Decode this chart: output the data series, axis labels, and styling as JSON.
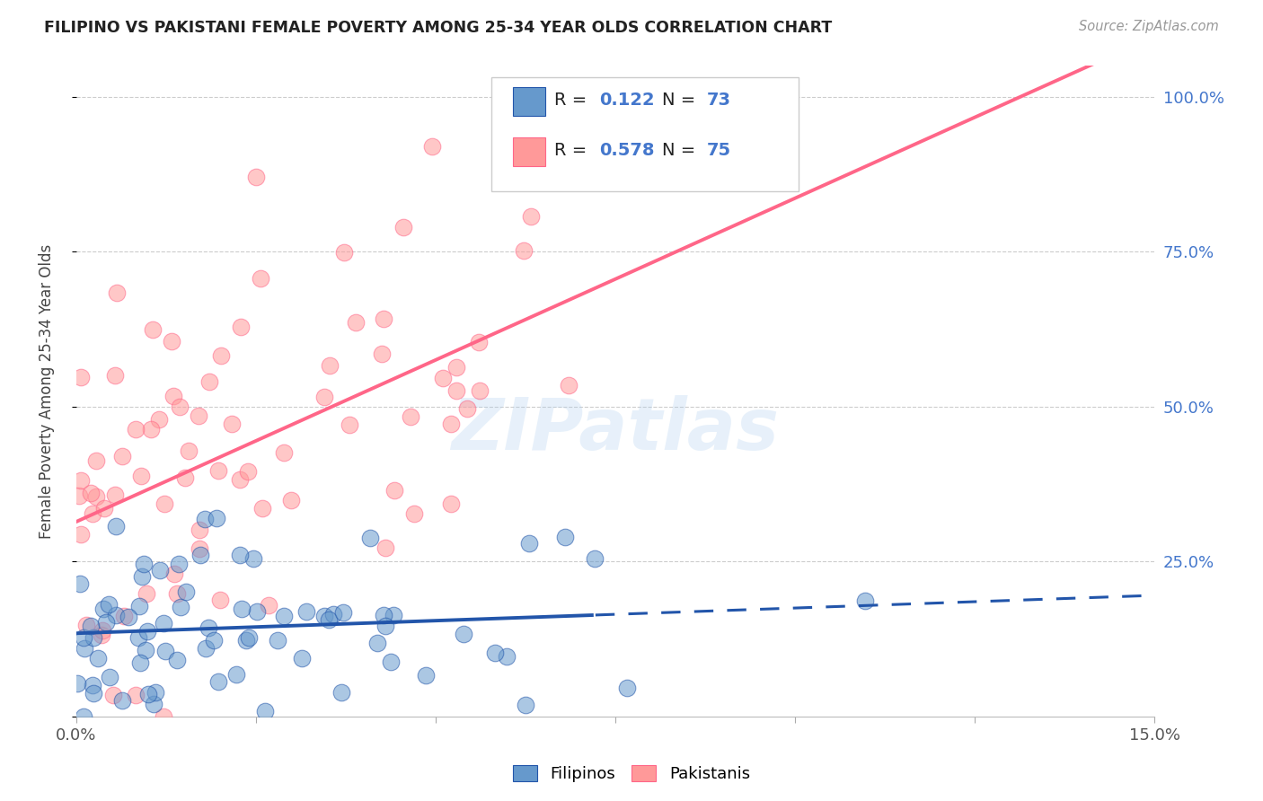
{
  "title": "FILIPINO VS PAKISTANI FEMALE POVERTY AMONG 25-34 YEAR OLDS CORRELATION CHART",
  "source": "Source: ZipAtlas.com",
  "ylabel": "Female Poverty Among 25-34 Year Olds",
  "xlim": [
    0.0,
    0.15
  ],
  "ylim": [
    0.0,
    1.05
  ],
  "filipino_R": 0.122,
  "filipino_N": 73,
  "pakistani_R": 0.578,
  "pakistani_N": 75,
  "filipino_color": "#6699CC",
  "pakistani_color": "#FF9999",
  "filipino_line_color": "#2255AA",
  "pakistani_line_color": "#FF6688",
  "legend_label_filipino": "Filipinos",
  "legend_label_pakistani": "Pakistanis",
  "watermark": "ZIPatlas",
  "yticks_right_labels": [
    "",
    "25.0%",
    "50.0%",
    "75.0%",
    "100.0%"
  ],
  "yticks_right_vals": [
    0.0,
    0.25,
    0.5,
    0.75,
    1.0
  ]
}
